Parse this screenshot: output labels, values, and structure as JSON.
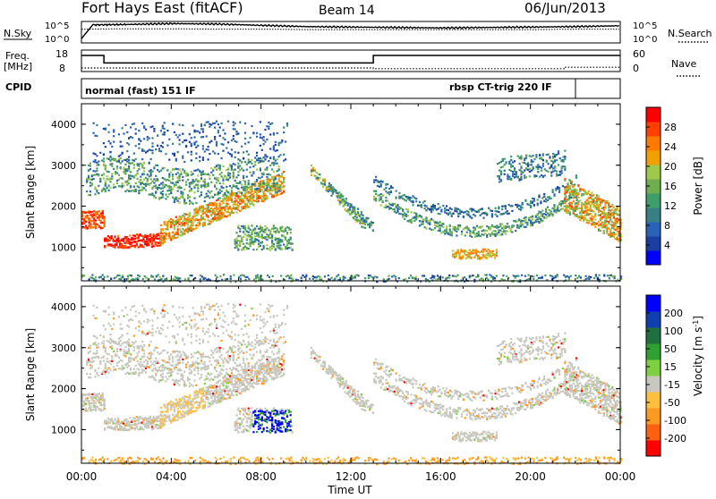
{
  "header": {
    "station": "Fort Hays East (fitACF)",
    "beam": "Beam 14",
    "date": "06/Jun/2013"
  },
  "strip_labels": {
    "nsky": "N.Sky",
    "nsearch": "N.Search",
    "freq_top": "Freq.",
    "freq_unit": "[MHz]",
    "nave": "Nave",
    "cpid": "CPID",
    "ticks": {
      "nsky_top": "10^5",
      "nsky_bottom": "10^0",
      "nsearch_top": "10^5",
      "nsearch_bottom": "10^0",
      "freq_top": "18",
      "freq_bottom": "8",
      "nave_top": "60",
      "nave_bottom": "0"
    }
  },
  "cpid_modes": [
    {
      "label": "normal (fast) 151 IF",
      "start_hour": 0
    },
    {
      "label": "rbsp CT-trig 220 IF",
      "start_hour": 13
    }
  ],
  "time_axis": {
    "label": "Time UT",
    "ticks": [
      "00:00",
      "04:00",
      "08:00",
      "12:00",
      "16:00",
      "20:00",
      "00:00"
    ]
  },
  "colors": {
    "power": [
      "#0000ff",
      "#1a3fa0",
      "#2a62b8",
      "#3a7f86",
      "#3f9d6a",
      "#6fae4f",
      "#9fc94a",
      "#f0a000",
      "#ff7a00",
      "#ff4000",
      "#ff0000"
    ],
    "velocity": [
      "#ff0000",
      "#ff6010",
      "#ff9a20",
      "#ffc040",
      "#c8c8c0",
      "#7fd040",
      "#30a030",
      "#1f6f3f",
      "#1040b0",
      "#0000ff"
    ]
  },
  "chart_data": [
    {
      "type": "line",
      "title": "N.Sky / N.Search",
      "y_ticks": [
        "10^5",
        "10^0"
      ],
      "series": [
        {
          "name": "N.Sky",
          "x": [
            0,
            0.5,
            2,
            4,
            6,
            8,
            10,
            12,
            14,
            16,
            18,
            20,
            22,
            24
          ],
          "y": [
            1,
            4.2,
            4.3,
            4.5,
            4.4,
            4.1,
            3.8,
            3.7,
            3.6,
            3.5,
            3.6,
            3.7,
            3.8,
            4.0
          ]
        },
        {
          "name": "N.Search",
          "x": [
            0,
            2,
            4,
            6,
            8,
            10,
            12,
            14,
            16,
            18,
            20,
            22,
            24
          ],
          "y": [
            3.2,
            3.3,
            3.3,
            3.2,
            3.2,
            3.1,
            3.1,
            3.1,
            3.1,
            3.1,
            3.1,
            3.2,
            3.2
          ]
        }
      ]
    },
    {
      "type": "line",
      "title": "Freq. / Nave",
      "series": [
        {
          "name": "Freq. [MHz]",
          "x": [
            0,
            1.0,
            1.0,
            13.0,
            13.0,
            24
          ],
          "y": [
            15.5,
            15.5,
            12.0,
            12.0,
            15.5,
            15.5
          ]
        },
        {
          "name": "Nave",
          "x": [
            0,
            13,
            13,
            21.5,
            21.5,
            24
          ],
          "y": [
            10,
            10,
            8,
            8,
            12,
            12
          ]
        }
      ],
      "ylim_left": [
        8,
        18
      ],
      "ylim_right": [
        0,
        60
      ]
    },
    {
      "type": "heatmap",
      "title": "Power [dB]",
      "xlabel": "Time UT",
      "ylabel": "Slant Range [km]",
      "xlim": [
        0,
        24
      ],
      "ylim": [
        180,
        4500
      ],
      "y_ticks": [
        1000,
        2000,
        3000,
        4000
      ],
      "colorbar_label": "Power [dB]",
      "colorbar_ticks": [
        4,
        8,
        12,
        16,
        20,
        24,
        28
      ],
      "colorbar_range": [
        0,
        32
      ]
    },
    {
      "type": "heatmap",
      "title": "Velocity [m s^-1]",
      "xlabel": "Time UT",
      "ylabel": "Slant Range [km]",
      "xlim": [
        0,
        24
      ],
      "ylim": [
        180,
        4500
      ],
      "y_ticks": [
        1000,
        2000,
        3000,
        4000
      ],
      "colorbar_label": "Velocity [m s-1]",
      "colorbar_ticks": [
        -200,
        -100,
        -50,
        -15,
        15,
        50,
        100,
        200
      ]
    }
  ],
  "panel_labels": {
    "ylabel": "Slant Range [km]",
    "power_cb": "Power [dB]",
    "vel_cb": "Velocity [m s"
  },
  "power_ticks": [
    "28",
    "24",
    "20",
    "16",
    "12",
    "8",
    "4"
  ],
  "vel_ticks": [
    "200",
    "100",
    "50",
    "15",
    "-15",
    "-50",
    "-100",
    "-200"
  ],
  "range_ticks": [
    "4000",
    "3000",
    "2000",
    "1000"
  ]
}
